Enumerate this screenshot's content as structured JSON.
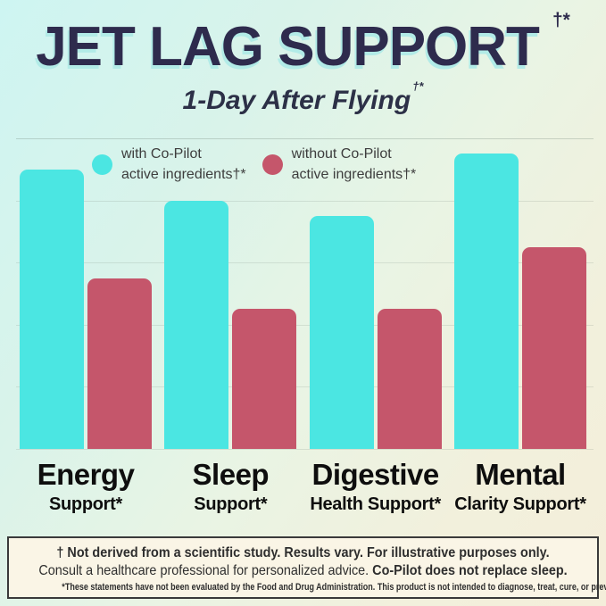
{
  "page": {
    "title": "JET LAG SUPPORT",
    "title_sup": "†*",
    "subtitle": "1-Day After Flying",
    "subtitle_sup": "†*"
  },
  "legend": {
    "with_item": {
      "line1": "with Co-Pilot",
      "line2": "active ingredients†*"
    },
    "without_item": {
      "line1": "without Co-Pilot",
      "line2": "active ingredients†*"
    }
  },
  "chart_data": {
    "type": "bar",
    "title": "JET LAG SUPPORT — 1-Day After Flying",
    "categories": [
      {
        "main": "Energy",
        "sub": "Support*"
      },
      {
        "main": "Sleep",
        "sub": "Support*"
      },
      {
        "main": "Digestive",
        "sub": "Health Support*"
      },
      {
        "main": "Mental",
        "sub": "Clarity Support*"
      }
    ],
    "series": [
      {
        "name": "with Co-Pilot active ingredients†*",
        "color": "#4be6e2",
        "values": [
          90,
          80,
          75,
          95
        ]
      },
      {
        "name": "without Co-Pilot active ingredients†*",
        "color": "#c5566b",
        "values": [
          55,
          45,
          45,
          65
        ]
      }
    ],
    "xlabel": "",
    "ylabel": "",
    "ylim": [
      0,
      100
    ],
    "gridlines": [
      0,
      20,
      40,
      60,
      80,
      100
    ],
    "y_axis_labels_shown": false,
    "legend_position": "top-inside"
  },
  "footer": {
    "line1": "† Not derived from a scientific study. Results vary. For illustrative purposes only.",
    "line2_regular": "Consult a healthcare professional for personalized advice. ",
    "line2_bold": "Co-Pilot does not replace sleep.",
    "line3": "*These statements have not been evaluated by the Food and Drug Administration.  This product is not intended to diagnose, treat, cure, or prevent any disease."
  },
  "colors": {
    "bar_with": "#4be6e2",
    "bar_without": "#c5566b",
    "title_navy": "#2e2b4d",
    "title_shadow": "#b2ebe7",
    "background_start": "#cef5f2",
    "background_end": "#f4eeda",
    "footer_background": "#faf5e6",
    "footer_border": "#3a3a3a"
  }
}
